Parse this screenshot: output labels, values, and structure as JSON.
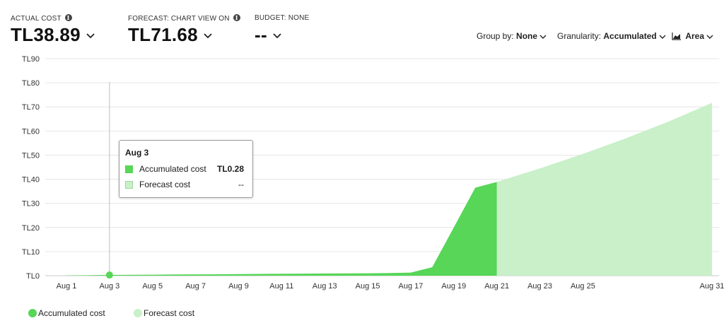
{
  "kpis": {
    "actual": {
      "label": "ACTUAL COST",
      "value": "TL38.89"
    },
    "forecast": {
      "label": "FORECAST: CHART VIEW ON",
      "value": "TL71.68"
    },
    "budget": {
      "label": "BUDGET: NONE",
      "value": "--"
    }
  },
  "controls": {
    "group_by": {
      "label": "Group by:",
      "value": "None"
    },
    "granularity": {
      "label": "Granularity:",
      "value": "Accumulated"
    },
    "chart_type": {
      "value": "Area"
    }
  },
  "tooltip": {
    "title": "Aug 3",
    "rows": [
      {
        "name": "Accumulated cost",
        "value": "TL0.28"
      },
      {
        "name": "Forecast cost",
        "value": "--"
      }
    ]
  },
  "legend": [
    {
      "name": "Accumulated cost",
      "color": "#57d657"
    },
    {
      "name": "Forecast cost",
      "color": "#c9f0c9"
    }
  ],
  "chart_data": {
    "type": "area",
    "x_ticks": [
      "Aug 1",
      "Aug 3",
      "Aug 5",
      "Aug 7",
      "Aug 9",
      "Aug 11",
      "Aug 13",
      "Aug 15",
      "Aug 17",
      "Aug 19",
      "Aug 21",
      "Aug 23",
      "Aug 25",
      "Aug 31"
    ],
    "y_ticks": [
      "TL0",
      "TL10",
      "TL20",
      "TL30",
      "TL40",
      "TL50",
      "TL60",
      "TL70",
      "TL80",
      "TL90"
    ],
    "ylim": [
      0,
      90
    ],
    "grid": true,
    "legend_position": "bottom-left",
    "highlighted_day": 3,
    "series": [
      {
        "name": "Accumulated cost",
        "color": "#57d657",
        "x": [
          1,
          2,
          3,
          4,
          5,
          6,
          7,
          8,
          9,
          10,
          11,
          12,
          13,
          14,
          15,
          16,
          17,
          18,
          20,
          21
        ],
        "values": [
          0.1,
          0.2,
          0.28,
          0.35,
          0.42,
          0.5,
          0.55,
          0.6,
          0.65,
          0.75,
          0.8,
          0.85,
          0.9,
          0.95,
          1.0,
          1.1,
          1.3,
          3.5,
          36.5,
          38.89
        ]
      },
      {
        "name": "Forecast cost",
        "color": "#c9f0c9",
        "x": [
          21,
          23,
          25,
          27,
          29,
          31
        ],
        "values": [
          38.89,
          44.5,
          50.5,
          57.0,
          64.0,
          71.68
        ]
      }
    ]
  }
}
